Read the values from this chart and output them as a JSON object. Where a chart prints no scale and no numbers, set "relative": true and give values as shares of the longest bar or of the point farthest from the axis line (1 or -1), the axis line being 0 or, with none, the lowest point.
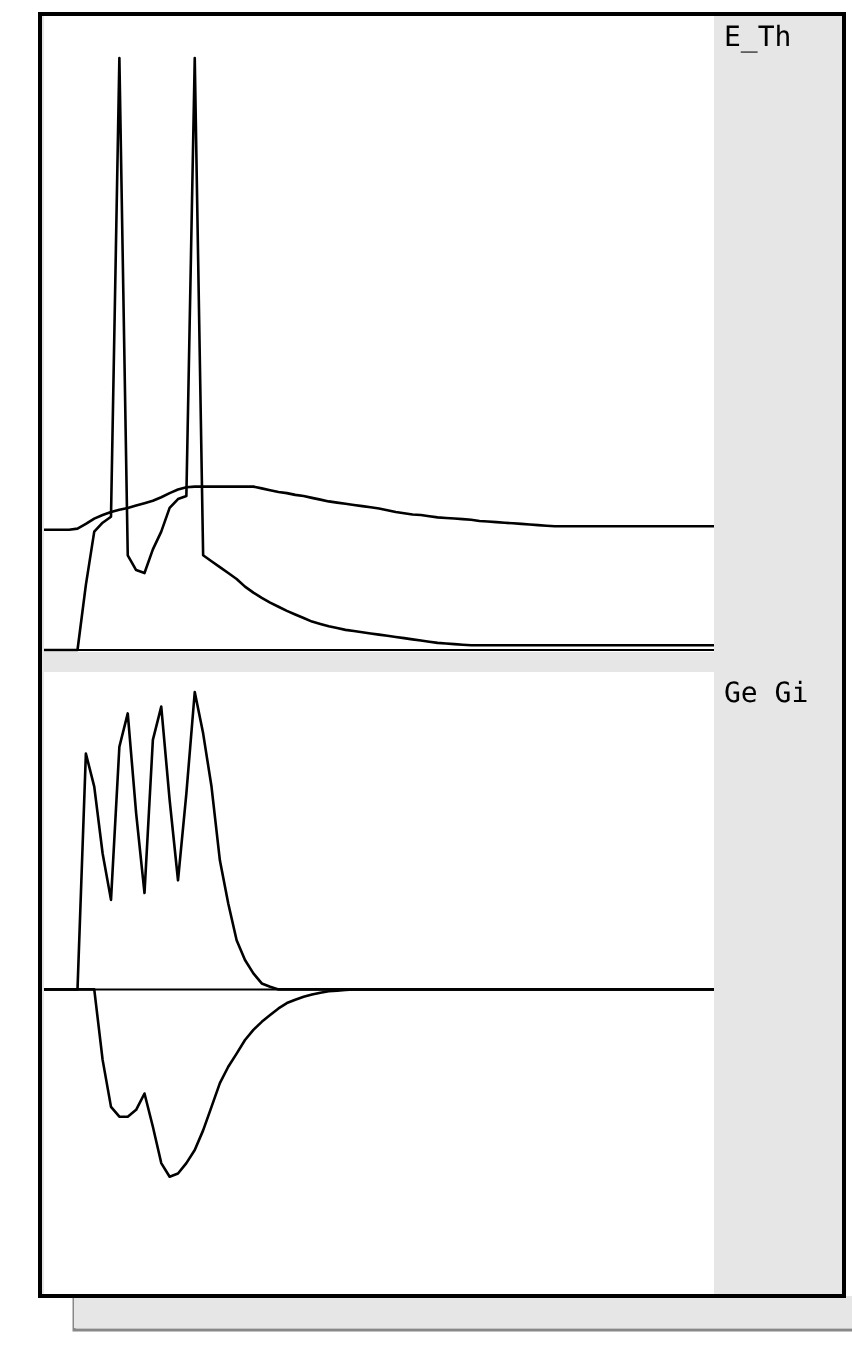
{
  "chart_data": [
    {
      "type": "line",
      "title": "E_Th",
      "relative": true,
      "categories": [
        null,
        null,
        null,
        null,
        null,
        null,
        null,
        null,
        null,
        null,
        null,
        null,
        null,
        null,
        null,
        null,
        null,
        null,
        null,
        null,
        null,
        null,
        null,
        null,
        null,
        null,
        null,
        null,
        null,
        null,
        null,
        null,
        null,
        null,
        null,
        null,
        null,
        null,
        null,
        null,
        null,
        null,
        null,
        null,
        null,
        null,
        null,
        null,
        null,
        null,
        null,
        null,
        null,
        null,
        null,
        null,
        null,
        null,
        null,
        null,
        null,
        null,
        null,
        null,
        null,
        null,
        null,
        null,
        null,
        null,
        null,
        null,
        null,
        null,
        null,
        null,
        null,
        null,
        null,
        null,
        null
      ],
      "series": [
        {
          "color": "#000000",
          "values": [
            0.203,
            0.203,
            0.203,
            0.203,
            0.205,
            0.213,
            0.222,
            0.228,
            0.233,
            0.237,
            0.24,
            0.244,
            0.248,
            0.252,
            0.258,
            0.265,
            0.271,
            0.275,
            0.276,
            0.276,
            0.276,
            0.276,
            0.276,
            0.276,
            0.276,
            0.276,
            0.273,
            0.27,
            0.267,
            0.265,
            0.262,
            0.26,
            0.257,
            0.254,
            0.251,
            0.249,
            0.247,
            0.245,
            0.243,
            0.241,
            0.239,
            0.236,
            0.233,
            0.231,
            0.229,
            0.228,
            0.226,
            0.224,
            0.223,
            0.222,
            0.221,
            0.22,
            0.218,
            0.217,
            0.216,
            0.215,
            0.214,
            0.213,
            0.212,
            0.211,
            0.21,
            0.209,
            0.209,
            0.209,
            0.209,
            0.209,
            0.209,
            0.209,
            0.209,
            0.209,
            0.209,
            0.209,
            0.209,
            0.209,
            0.209,
            0.209,
            0.209,
            0.209,
            0.209,
            0.209,
            0.209
          ]
        },
        {
          "color": "#000000",
          "values": [
            0,
            0,
            0,
            0,
            0,
            0.11,
            0.2,
            0.215,
            0.225,
            1,
            0.16,
            0.135,
            0.13,
            0.17,
            0.2,
            0.24,
            0.255,
            0.26,
            1,
            0.16,
            0.15,
            0.14,
            0.13,
            0.12,
            0.107,
            0.097,
            0.088,
            0.08,
            0.073,
            0.066,
            0.06,
            0.054,
            0.048,
            0.044,
            0.04,
            0.037,
            0.034,
            0.032,
            0.03,
            0.028,
            0.026,
            0.024,
            0.022,
            0.02,
            0.018,
            0.016,
            0.014,
            0.012,
            0.011,
            0.01,
            0.009,
            0.008,
            0.008,
            0.008,
            0.008,
            0.008,
            0.008,
            0.008,
            0.008,
            0.008,
            0.008,
            0.008,
            0.008,
            0.008,
            0.008,
            0.008,
            0.008,
            0.008,
            0.008,
            0.008,
            0.008,
            0.008,
            0.008,
            0.008,
            0.008,
            0.008,
            0.008,
            0.008,
            0.008,
            0.008,
            0.008
          ]
        }
      ]
    },
    {
      "type": "line",
      "title": "Ge Gi",
      "relative": true,
      "categories": [
        null,
        null,
        null,
        null,
        null,
        null,
        null,
        null,
        null,
        null,
        null,
        null,
        null,
        null,
        null,
        null,
        null,
        null,
        null,
        null,
        null,
        null,
        null,
        null,
        null,
        null,
        null,
        null,
        null,
        null,
        null,
        null,
        null,
        null,
        null,
        null,
        null,
        null,
        null,
        null,
        null,
        null,
        null,
        null,
        null,
        null,
        null,
        null,
        null,
        null,
        null,
        null,
        null,
        null,
        null,
        null,
        null,
        null,
        null,
        null,
        null,
        null,
        null,
        null,
        null,
        null,
        null,
        null,
        null,
        null,
        null,
        null,
        null,
        null,
        null,
        null,
        null,
        null,
        null,
        null,
        null
      ],
      "series": [
        {
          "color": "#000000",
          "values": [
            0,
            0,
            0,
            0,
            0,
            0.793,
            0.682,
            0.457,
            0.301,
            0.816,
            0.928,
            0.593,
            0.324,
            0.839,
            0.951,
            0.637,
            0.367,
            0.659,
            1,
            0.861,
            0.682,
            0.434,
            0.289,
            0.165,
            0.099,
            0.054,
            0.02,
            0.009,
            0,
            0,
            0,
            0,
            0,
            0,
            0,
            0,
            0,
            0,
            0,
            0,
            0,
            0,
            0,
            0,
            0,
            0,
            0,
            0,
            0,
            0,
            0,
            0,
            0,
            0,
            0,
            0,
            0,
            0,
            0,
            0,
            0,
            0,
            0,
            0,
            0,
            0,
            0,
            0,
            0,
            0,
            0,
            0,
            0,
            0,
            0,
            0,
            0,
            0,
            0,
            0,
            0
          ]
        },
        {
          "color": "#000000",
          "values": [
            0,
            0,
            0,
            0,
            0,
            0,
            0,
            -0.237,
            -0.395,
            -0.428,
            -0.428,
            -0.405,
            -0.35,
            -0.462,
            -0.584,
            -0.63,
            -0.619,
            -0.584,
            -0.54,
            -0.474,
            -0.395,
            -0.315,
            -0.26,
            -0.216,
            -0.17,
            -0.136,
            -0.109,
            -0.086,
            -0.064,
            -0.046,
            -0.035,
            -0.025,
            -0.017,
            -0.011,
            -0.006,
            -0.004,
            -0.002,
            0,
            0,
            0,
            0,
            0,
            0,
            0,
            0,
            0,
            0,
            0,
            0,
            0,
            0,
            0,
            0,
            0,
            0,
            0,
            0,
            0,
            0,
            0,
            0,
            0,
            0,
            0,
            0,
            0,
            0,
            0,
            0,
            0,
            0,
            0,
            0,
            0,
            0,
            0,
            0,
            0,
            0,
            0,
            0
          ]
        }
      ]
    }
  ]
}
